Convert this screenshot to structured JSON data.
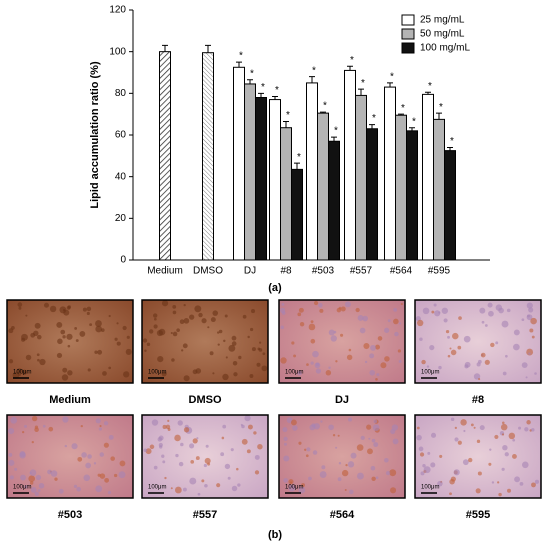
{
  "chart_data": {
    "type": "bar",
    "ylabel": "Lipid accumulation ratio (%)",
    "panel_label": "(a)",
    "categories": [
      "Medium",
      "DMSO",
      "DJ",
      "#8",
      "#503",
      "#557",
      "#564",
      "#595"
    ],
    "controls": {
      "values": [
        100,
        99.5,
        null,
        null,
        null,
        null,
        null,
        null
      ],
      "errors": [
        3,
        3.5,
        null,
        null,
        null,
        null,
        null,
        null
      ]
    },
    "series": [
      {
        "name": "25 mg/mL",
        "color": "#ffffff",
        "values": [
          null,
          null,
          92.5,
          77,
          85,
          91,
          83,
          79.5
        ],
        "errors": [
          null,
          null,
          2.5,
          1.5,
          3,
          2,
          2,
          1
        ]
      },
      {
        "name": "50 mg/mL",
        "color": "#b4b4b4",
        "values": [
          null,
          null,
          84.5,
          63.5,
          70.5,
          79,
          69.5,
          67.5
        ],
        "errors": [
          null,
          null,
          2,
          3,
          0.5,
          3,
          0.5,
          3
        ]
      },
      {
        "name": "100 mg/mL",
        "color": "#111111",
        "values": [
          null,
          null,
          78,
          43.5,
          57,
          63,
          62,
          52.5
        ],
        "errors": [
          null,
          null,
          2,
          3,
          2,
          2,
          1.5,
          1.5
        ]
      }
    ],
    "significance_marker": "*",
    "ylim": [
      0,
      120
    ],
    "yticks": [
      0,
      20,
      40,
      60,
      80,
      100,
      120
    ]
  },
  "micrographs": {
    "panel_label": "(b)",
    "scale_bar": "100μm",
    "labels": [
      "Medium",
      "DMSO",
      "DJ",
      "#8",
      "#503",
      "#557",
      "#564",
      "#595"
    ]
  }
}
